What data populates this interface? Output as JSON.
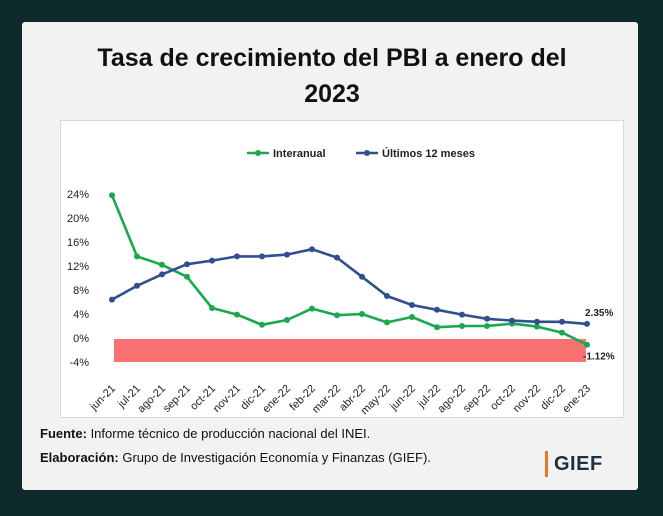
{
  "title": "Tasa de crecimiento del PBI a enero del 2023",
  "footer": {
    "source_label": "Fuente:",
    "source_text": " Informe técnico de producción nacional del INEI.",
    "credit_label": "Elaboración:",
    "credit_text": " Grupo de Investigación Economía y Finanzas (GIEF)."
  },
  "logo": {
    "text": "GIEF",
    "accent_color": "#e87722"
  },
  "chart_data": {
    "type": "line",
    "categories": [
      "jun-21",
      "jul-21",
      "ago-21",
      "sep-21",
      "oct-21",
      "nov-21",
      "dic-21",
      "ene-22",
      "feb-22",
      "mar-22",
      "abr-22",
      "may-22",
      "jun-22",
      "jul-22",
      "ago-22",
      "sep-22",
      "oct-22",
      "nov-22",
      "dic-22",
      "ene-23"
    ],
    "series": [
      {
        "name": "Interanual",
        "color": "#1aa84f",
        "values": [
          23.8,
          13.6,
          12.2,
          10.2,
          5.0,
          3.9,
          2.2,
          3.0,
          4.9,
          3.8,
          4.0,
          2.6,
          3.5,
          1.8,
          2.0,
          2.0,
          2.4,
          1.9,
          0.9,
          -1.12
        ]
      },
      {
        "name": "Últimos 12 meses",
        "color": "#2f4f8f",
        "values": [
          6.4,
          8.7,
          10.6,
          12.3,
          12.9,
          13.6,
          13.6,
          13.9,
          14.8,
          13.4,
          10.2,
          7.0,
          5.5,
          4.7,
          3.9,
          3.2,
          2.9,
          2.7,
          2.7,
          2.35
        ]
      }
    ],
    "data_labels": {
      "last_interanual": "-1.12%",
      "last_12m": "2.35%"
    },
    "yticks": [
      "24%",
      "20%",
      "16%",
      "12%",
      "8%",
      "4%",
      "0%",
      "-4%"
    ],
    "ylim": [
      -4,
      24
    ],
    "negative_band_color": "#f97272",
    "legend": "top",
    "grid": false,
    "title": "",
    "xlabel": "",
    "ylabel": ""
  }
}
